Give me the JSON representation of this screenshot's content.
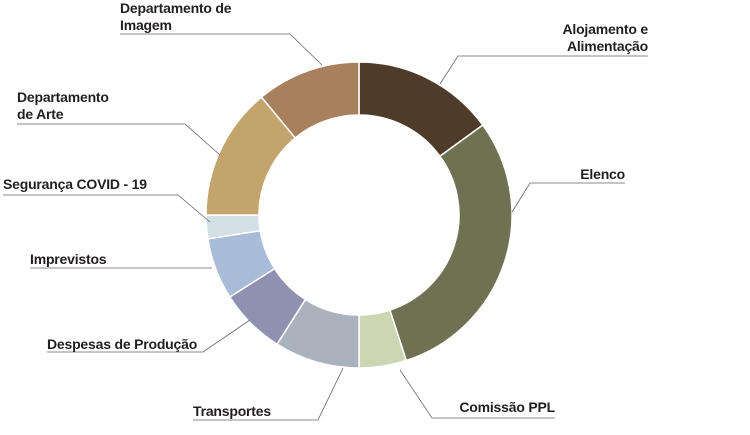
{
  "chart_data": {
    "type": "donut",
    "categories": [
      "Alojamento e Alimentação",
      "Elenco",
      "Comissão PPL",
      "Transportes",
      "Despesas de Produção",
      "Imprevistos",
      "Segurança COVID - 19",
      "Departamento de Arte",
      "Departamento de Imagem"
    ],
    "values": [
      15,
      30,
      5,
      9,
      7,
      6.5,
      2.5,
      14,
      11
    ],
    "colors": [
      "#4e3b2a",
      "#6f7153",
      "#cdd5b3",
      "#aab3bd",
      "#9090b0",
      "#a8bcd8",
      "#d3e0e8",
      "#c3a46c",
      "#a8805e"
    ]
  }
}
